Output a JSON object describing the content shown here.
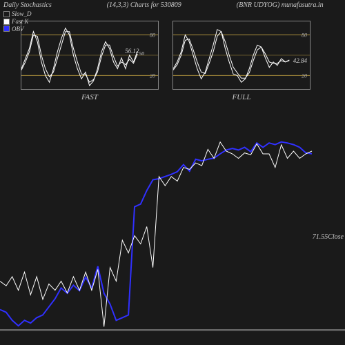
{
  "header": {
    "title": "Daily Stochastics",
    "params": "(14,3,3) Charts for 530809",
    "right": "(BNR UDYOG) munafasutra.in"
  },
  "legend": [
    {
      "label": "Slow_D",
      "fill": null
    },
    {
      "label": "Fast K",
      "fill": "white"
    },
    {
      "label": "OBV",
      "fill": "blue"
    }
  ],
  "miniCharts": {
    "grid_color": "#a58a3a",
    "border_color": "#888",
    "line_color": "#ffffff",
    "fast": {
      "label": "FAST",
      "value": 56.12,
      "value_suffix": "50",
      "ylim": [
        0,
        100
      ],
      "yticks": [
        20,
        80
      ],
      "k": [
        30,
        45,
        60,
        85,
        70,
        40,
        20,
        10,
        30,
        55,
        75,
        90,
        80,
        50,
        30,
        15,
        25,
        5,
        12,
        30,
        55,
        70,
        60,
        40,
        30,
        46,
        30,
        50,
        40,
        56
      ],
      "d": [
        28,
        40,
        55,
        80,
        78,
        50,
        30,
        18,
        25,
        45,
        65,
        85,
        85,
        60,
        40,
        22,
        22,
        10,
        14,
        25,
        48,
        65,
        65,
        48,
        34,
        40,
        36,
        44,
        38,
        52
      ]
    },
    "full": {
      "label": "FULL",
      "value": 42.84,
      "ylim": [
        0,
        100
      ],
      "yticks": [
        20,
        80
      ],
      "k": [
        30,
        40,
        55,
        80,
        70,
        50,
        30,
        15,
        25,
        45,
        65,
        88,
        85,
        60,
        40,
        22,
        20,
        10,
        15,
        30,
        50,
        65,
        62,
        46,
        32,
        40,
        35,
        45,
        40,
        43
      ],
      "d": [
        28,
        36,
        50,
        72,
        74,
        58,
        40,
        25,
        23,
        38,
        55,
        78,
        85,
        70,
        50,
        32,
        24,
        16,
        16,
        24,
        42,
        58,
        62,
        52,
        40,
        38,
        38,
        42,
        40,
        42
      ]
    }
  },
  "main": {
    "close": {
      "value": 71.55,
      "label": "Close"
    },
    "price_color": "#ffffff",
    "obv_color": "#3030ff",
    "baseline_color": "#666666",
    "price": [
      235,
      230,
      240,
      225,
      245,
      220,
      240,
      215,
      232,
      225,
      235,
      222,
      240,
      225,
      245,
      225,
      248,
      185,
      250,
      235,
      280,
      266,
      285,
      276,
      295,
      250,
      350,
      340,
      350,
      345,
      360,
      358,
      365,
      362,
      380,
      370,
      388,
      378,
      375,
      370,
      376,
      374,
      386,
      375,
      375,
      360,
      385,
      370,
      378,
      370,
      375,
      378
    ],
    "obv": [
      70,
      65,
      50,
      40,
      50,
      45,
      55,
      60,
      75,
      90,
      110,
      100,
      115,
      105,
      130,
      110,
      150,
      100,
      80,
      50,
      55,
      60,
      260,
      265,
      290,
      310,
      312,
      316,
      320,
      325,
      338,
      326,
      348,
      345,
      348,
      350,
      358,
      365,
      368,
      365,
      370,
      362,
      378,
      370,
      378,
      375,
      380,
      378,
      375,
      370,
      360,
      358
    ]
  }
}
